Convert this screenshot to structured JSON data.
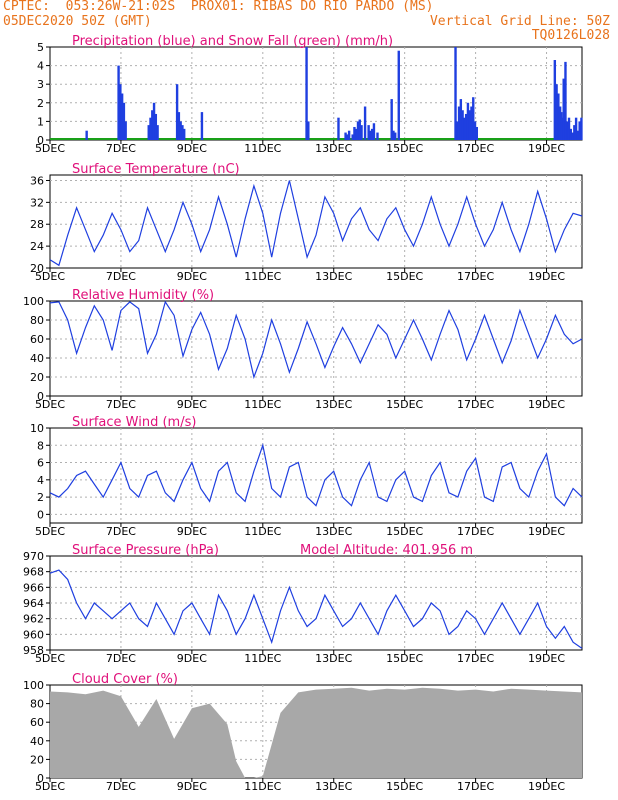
{
  "header": {
    "left1": "CPTEC:  053:26W-21:02S  PROX01: RIBAS DO RIO PARDO (MS)",
    "left2": "05DEC2020 50Z (GMT)",
    "right2": "Vertical Grid Line: 50Z",
    "right3": "TQ0126L028"
  },
  "colors": {
    "header": "#e8731c",
    "title": "#e0107a",
    "line": "#1f3fe0",
    "snow": "#19a019",
    "cloud": "#a8a8a8",
    "grid": "#b0b0b0"
  },
  "xticks": [
    "5DEC",
    "7DEC",
    "9DEC",
    "11DEC",
    "13DEC",
    "15DEC",
    "17DEC",
    "19DEC"
  ],
  "chart_data": [
    {
      "type": "bar",
      "title": "Precipitation (blue) and Snow Fall (green) (mm/h)",
      "ylim": [
        0,
        5
      ],
      "yticks": [
        "0",
        "1",
        "2",
        "3",
        "4",
        "5"
      ],
      "x_days": [
        1.0,
        1.9,
        1.95,
        2.0,
        2.05,
        2.1,
        2.75,
        2.8,
        2.85,
        2.9,
        2.95,
        3.0,
        3.55,
        3.6,
        3.65,
        3.7,
        3.75,
        4.25,
        7.2,
        7.25,
        8.1,
        8.3,
        8.35,
        8.4,
        8.5,
        8.55,
        8.6,
        8.65,
        8.7,
        8.75,
        8.85,
        8.95,
        9.0,
        9.05,
        9.1,
        9.2,
        9.6,
        9.65,
        9.7,
        9.8,
        11.4,
        11.45,
        11.5,
        11.55,
        11.6,
        11.65,
        11.7,
        11.75,
        11.8,
        11.85,
        11.9,
        11.95,
        12.0,
        14.4,
        14.45,
        14.5,
        14.55,
        14.6,
        14.65,
        14.7,
        14.75,
        14.8,
        14.85,
        14.9,
        14.95,
        14.2,
        14.25,
        14.3,
        14.35,
        14.38
      ],
      "values": [
        0.5,
        4.0,
        3.0,
        2.5,
        2.0,
        1.0,
        0.8,
        1.2,
        1.6,
        2.0,
        1.4,
        0.8,
        3.0,
        1.5,
        1.0,
        0.8,
        0.6,
        1.5,
        5.0,
        1.0,
        1.2,
        0.4,
        0.3,
        0.5,
        0.3,
        0.7,
        0.6,
        1.0,
        1.1,
        0.8,
        1.8,
        0.8,
        0.5,
        0.6,
        0.9,
        0.4,
        2.2,
        0.5,
        0.4,
        4.8,
        5.0,
        1.0,
        1.8,
        2.2,
        1.6,
        1.2,
        1.4,
        2.0,
        1.6,
        1.8,
        2.3,
        1.0,
        0.7,
        1.2,
        3.3,
        4.2,
        1.0,
        1.2,
        0.6,
        0.4,
        0.8,
        1.2,
        0.5,
        1.0,
        1.2,
        4.3,
        3.0,
        2.5,
        1.8,
        1.5
      ]
    },
    {
      "type": "line",
      "title": "Surface Temperature (nC)",
      "ylim": [
        20,
        37
      ],
      "yticks": [
        "20",
        "24",
        "28",
        "32",
        "36"
      ],
      "x_days": [
        0,
        0.25,
        0.5,
        0.75,
        1,
        1.25,
        1.5,
        1.75,
        2,
        2.25,
        2.5,
        2.75,
        3,
        3.25,
        3.5,
        3.75,
        4,
        4.25,
        4.5,
        4.75,
        5,
        5.25,
        5.5,
        5.75,
        6,
        6.25,
        6.5,
        6.75,
        7,
        7.25,
        7.5,
        7.75,
        8,
        8.25,
        8.5,
        8.75,
        9,
        9.25,
        9.5,
        9.75,
        10,
        10.25,
        10.5,
        10.75,
        11,
        11.25,
        11.5,
        11.75,
        12,
        12.25,
        12.5,
        12.75,
        13,
        13.25,
        13.5,
        13.75,
        14,
        14.25,
        14.5,
        14.75,
        15
      ],
      "values": [
        21.5,
        20.5,
        26,
        31,
        27,
        23,
        26,
        30,
        27,
        23,
        25,
        31,
        27,
        23,
        27,
        32,
        28,
        23,
        27,
        33,
        28,
        22,
        29,
        35,
        30,
        22,
        30,
        36,
        29,
        22,
        26,
        33,
        30,
        25,
        29,
        31,
        27,
        25,
        29,
        31,
        27,
        24,
        28,
        33,
        28,
        24,
        28,
        33,
        28,
        24,
        27,
        32,
        27,
        23,
        28,
        34,
        29,
        23,
        27,
        30,
        29.5
      ]
    },
    {
      "type": "line",
      "title": "Relative Humidity (%)",
      "ylim": [
        0,
        100
      ],
      "yticks": [
        "0",
        "20",
        "40",
        "60",
        "80",
        "100"
      ],
      "x_days": [
        0,
        0.25,
        0.5,
        0.75,
        1,
        1.25,
        1.5,
        1.75,
        2,
        2.25,
        2.5,
        2.75,
        3,
        3.25,
        3.5,
        3.75,
        4,
        4.25,
        4.5,
        4.75,
        5,
        5.25,
        5.5,
        5.75,
        6,
        6.25,
        6.5,
        6.75,
        7,
        7.25,
        7.5,
        7.75,
        8,
        8.25,
        8.5,
        8.75,
        9,
        9.25,
        9.5,
        9.75,
        10,
        10.25,
        10.5,
        10.75,
        11,
        11.25,
        11.5,
        11.75,
        12,
        12.25,
        12.5,
        12.75,
        13,
        13.25,
        13.5,
        13.75,
        14,
        14.25,
        14.5,
        14.75,
        15
      ],
      "values": [
        98,
        99,
        80,
        45,
        72,
        95,
        80,
        48,
        90,
        99,
        92,
        45,
        65,
        99,
        85,
        42,
        70,
        88,
        65,
        28,
        50,
        85,
        60,
        20,
        45,
        80,
        55,
        25,
        50,
        78,
        55,
        30,
        52,
        72,
        55,
        35,
        55,
        75,
        65,
        40,
        60,
        80,
        60,
        38,
        65,
        90,
        70,
        38,
        60,
        85,
        60,
        35,
        58,
        90,
        65,
        40,
        60,
        85,
        65,
        55,
        60
      ]
    },
    {
      "type": "line",
      "title": "Surface Wind (m/s)",
      "ylim": [
        -1,
        10
      ],
      "yticks": [
        "0",
        "2",
        "4",
        "6",
        "8",
        "10"
      ],
      "x_days": [
        0,
        0.25,
        0.5,
        0.75,
        1,
        1.25,
        1.5,
        1.75,
        2,
        2.25,
        2.5,
        2.75,
        3,
        3.25,
        3.5,
        3.75,
        4,
        4.25,
        4.5,
        4.75,
        5,
        5.25,
        5.5,
        5.75,
        6,
        6.25,
        6.5,
        6.75,
        7,
        7.25,
        7.5,
        7.75,
        8,
        8.25,
        8.5,
        8.75,
        9,
        9.25,
        9.5,
        9.75,
        10,
        10.25,
        10.5,
        10.75,
        11,
        11.25,
        11.5,
        11.75,
        12,
        12.25,
        12.5,
        12.75,
        13,
        13.25,
        13.5,
        13.75,
        14,
        14.25,
        14.5,
        14.75,
        15
      ],
      "values": [
        2.5,
        2.0,
        3.0,
        4.5,
        5.0,
        3.5,
        2.0,
        4.0,
        6.0,
        3.0,
        2.0,
        4.5,
        5.0,
        2.5,
        1.5,
        4.0,
        6.0,
        3.0,
        1.5,
        5.0,
        6.0,
        2.5,
        1.5,
        5.0,
        8.0,
        3.0,
        2.0,
        5.5,
        6.0,
        2.0,
        1.0,
        4.0,
        5.0,
        2.0,
        1.0,
        4.0,
        6.0,
        2.0,
        1.5,
        4.0,
        5.0,
        2.0,
        1.5,
        4.5,
        6.0,
        2.5,
        2.0,
        5.0,
        6.5,
        2.0,
        1.5,
        5.5,
        6.0,
        3.0,
        2.0,
        5.0,
        7.0,
        2.0,
        1.0,
        3.0,
        2.0
      ]
    },
    {
      "type": "line",
      "title": "Surface Pressure (hPa)",
      "annotation": "Model Altitude: 401.956  m",
      "ylim": [
        958,
        970
      ],
      "yticks": [
        "958",
        "960",
        "962",
        "964",
        "966",
        "968",
        "970"
      ],
      "x_days": [
        0,
        0.25,
        0.5,
        0.75,
        1,
        1.25,
        1.5,
        1.75,
        2,
        2.25,
        2.5,
        2.75,
        3,
        3.25,
        3.5,
        3.75,
        4,
        4.25,
        4.5,
        4.75,
        5,
        5.25,
        5.5,
        5.75,
        6,
        6.25,
        6.5,
        6.75,
        7,
        7.25,
        7.5,
        7.75,
        8,
        8.25,
        8.5,
        8.75,
        9,
        9.25,
        9.5,
        9.75,
        10,
        10.25,
        10.5,
        10.75,
        11,
        11.25,
        11.5,
        11.75,
        12,
        12.25,
        12.5,
        12.75,
        13,
        13.25,
        13.5,
        13.75,
        14,
        14.25,
        14.5,
        14.75,
        15
      ],
      "values": [
        967.8,
        968.2,
        967,
        964,
        962,
        964,
        963,
        962,
        963,
        964,
        962,
        961,
        964,
        962,
        960,
        963,
        964,
        962,
        960,
        965,
        963,
        960,
        962,
        965,
        962,
        959,
        963,
        966,
        963,
        961,
        962,
        965,
        963,
        961,
        962,
        964,
        962,
        960,
        963,
        965,
        963,
        961,
        962,
        964,
        963,
        960,
        961,
        963,
        962,
        960,
        962,
        964,
        962,
        960,
        962,
        964,
        961,
        959.5,
        961,
        959,
        958.2
      ]
    },
    {
      "type": "area",
      "title": "Cloud Cover (%)",
      "ylim": [
        0,
        100
      ],
      "yticks": [
        "0",
        "20",
        "40",
        "60",
        "80",
        "100"
      ],
      "x_days": [
        0,
        0.5,
        1,
        1.5,
        2,
        2.5,
        3,
        3.5,
        4,
        4.5,
        5,
        5.25,
        5.5,
        5.75,
        6,
        6.5,
        7,
        7.5,
        8,
        8.5,
        9,
        9.5,
        10,
        10.5,
        11,
        11.5,
        12,
        12.5,
        13,
        13.5,
        14,
        14.5,
        15
      ],
      "values": [
        93,
        92,
        90,
        94,
        88,
        55,
        85,
        42,
        75,
        80,
        58,
        18,
        0,
        0,
        2,
        70,
        92,
        95,
        96,
        97,
        94,
        96,
        95,
        97,
        96,
        94,
        95,
        93,
        96,
        95,
        94,
        93,
        92
      ]
    }
  ]
}
